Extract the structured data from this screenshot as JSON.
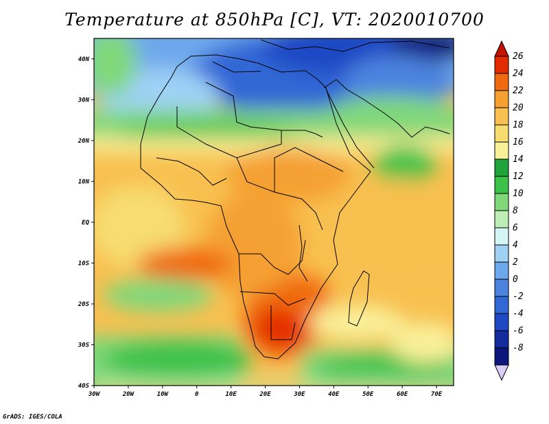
{
  "title": "Temperature at 850hPa [C], VT: 2020010700",
  "credit": "GrADS: IGES/COLA",
  "map": {
    "lon_range": [
      -30,
      75
    ],
    "lat_range": [
      -40,
      45
    ],
    "lon_ticks": [
      {
        "value": -30,
        "label": "30W"
      },
      {
        "value": -20,
        "label": "20W"
      },
      {
        "value": -10,
        "label": "10W"
      },
      {
        "value": 0,
        "label": "0"
      },
      {
        "value": 10,
        "label": "10E"
      },
      {
        "value": 20,
        "label": "20E"
      },
      {
        "value": 30,
        "label": "30E"
      },
      {
        "value": 40,
        "label": "40E"
      },
      {
        "value": 50,
        "label": "50E"
      },
      {
        "value": 60,
        "label": "60E"
      },
      {
        "value": 70,
        "label": "70E"
      }
    ],
    "lat_ticks": [
      {
        "value": 40,
        "label": "40N"
      },
      {
        "value": 30,
        "label": "30N"
      },
      {
        "value": 20,
        "label": "20N"
      },
      {
        "value": 10,
        "label": "10N"
      },
      {
        "value": 0,
        "label": "EQ"
      },
      {
        "value": -10,
        "label": "10S"
      },
      {
        "value": -20,
        "label": "20S"
      },
      {
        "value": -30,
        "label": "30S"
      },
      {
        "value": -40,
        "label": "40S"
      }
    ]
  },
  "colorbar": {
    "levels": [
      {
        "value": "26",
        "color": "#e32b00"
      },
      {
        "value": "24",
        "color": "#f06a10"
      },
      {
        "value": "22",
        "color": "#f5a030"
      },
      {
        "value": "20",
        "color": "#f8c050"
      },
      {
        "value": "18",
        "color": "#f7dc70"
      },
      {
        "value": "16",
        "color": "#f9f09a"
      },
      {
        "value": "14",
        "color": "#1fa33a"
      },
      {
        "value": "12",
        "color": "#3dc249"
      },
      {
        "value": "10",
        "color": "#80d87a"
      },
      {
        "value": "8",
        "color": "#bdeeb4"
      },
      {
        "value": "6",
        "color": "#d5f5f5"
      },
      {
        "value": "4",
        "color": "#9fd1f5"
      },
      {
        "value": "2",
        "color": "#6ea8ec"
      },
      {
        "value": "0",
        "color": "#4b83df"
      },
      {
        "value": "-2",
        "color": "#3168d6"
      },
      {
        "value": "-4",
        "color": "#1e48c4"
      },
      {
        "value": "-6",
        "color": "#122c9e"
      },
      {
        "value": "-8",
        "color": "#0d167a"
      }
    ],
    "over_color": "#c21400",
    "under_color": "#d8d0f7"
  }
}
